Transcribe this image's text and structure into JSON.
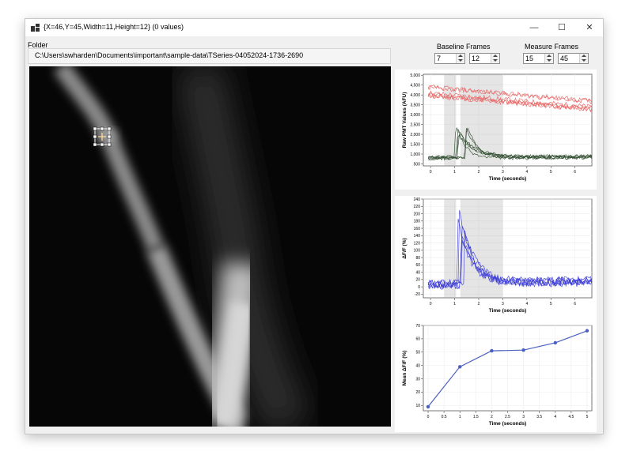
{
  "window": {
    "title": "{X=46,Y=45,Width=11,Height=12} (0 values)",
    "controls": {
      "minimize": "—",
      "maximize": "☐",
      "close": "✕"
    }
  },
  "folder": {
    "label": "Folder",
    "path": "C:\\Users\\swharden\\Documents\\important\\sample-data\\TSeries-04052024-1736-2690"
  },
  "baseline": {
    "label": "Baseline Frames",
    "start": "7",
    "end": "12"
  },
  "measure": {
    "label": "Measure Frames",
    "start": "15",
    "end": "45"
  },
  "icons": {
    "app": "window-icon",
    "spin": "spinner-arrows-icon"
  },
  "chart_data": [
    {
      "type": "line",
      "ylabel": "Raw PMT Values (AFU)",
      "xlabel": "Time (seconds)",
      "xlim": [
        -0.3,
        6.7
      ],
      "ylim": [
        400,
        5050
      ],
      "xticks": [
        "0",
        "1",
        "2",
        "3",
        "4",
        "5",
        "6"
      ],
      "yticks": [
        "500",
        "1,000",
        "1,500",
        "2,000",
        "2,500",
        "3,000",
        "3,500",
        "4,000",
        "4,500",
        "5,000"
      ],
      "shaded": [
        [
          0.56,
          1.06
        ],
        [
          1.24,
          3.0
        ]
      ],
      "series_groups": [
        {
          "name": "red",
          "color": "#e8605f",
          "count": 6,
          "base": 4200,
          "end": 3500,
          "peak": 0
        },
        {
          "name": "green",
          "color": "#2e4a2e",
          "count": 6,
          "base": 800,
          "end": 850,
          "peak": 2000
        }
      ]
    },
    {
      "type": "line",
      "ylabel": "ΔF/F (%)",
      "xlabel": "Time (seconds)",
      "xlim": [
        -0.3,
        6.7
      ],
      "ylim": [
        -30,
        240
      ],
      "xticks": [
        "0",
        "1",
        "2",
        "3",
        "4",
        "5",
        "6"
      ],
      "yticks": [
        "-20",
        "0",
        "20",
        "40",
        "60",
        "80",
        "100",
        "120",
        "140",
        "160",
        "180",
        "200",
        "220",
        "240"
      ],
      "shaded": [
        [
          0.56,
          1.06
        ],
        [
          1.24,
          3.0
        ]
      ],
      "series_groups": [
        {
          "name": "blue",
          "color": "#3b3bd6",
          "count": 6,
          "base": 5,
          "end": 15,
          "peak": 190
        }
      ]
    },
    {
      "type": "line",
      "ylabel": "Mean ΔF/F (%)",
      "xlabel": "Time (seconds)",
      "xlim": [
        -0.15,
        5.15
      ],
      "ylim": [
        6,
        70
      ],
      "xticks": [
        "0",
        "0.5",
        "1",
        "1.5",
        "2",
        "2.5",
        "3",
        "3.5",
        "4",
        "4.5",
        "5"
      ],
      "yticks": [
        "10",
        "20",
        "30",
        "40",
        "50",
        "60",
        "70"
      ],
      "x": [
        0,
        1,
        2,
        3,
        4,
        5
      ],
      "values": [
        9,
        39,
        51,
        51.5,
        57,
        66
      ],
      "color": "#4a5fc0"
    }
  ]
}
